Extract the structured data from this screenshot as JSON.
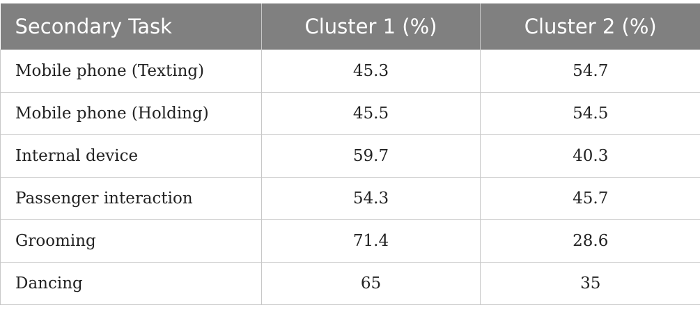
{
  "table": {
    "header": [
      "Secondary Task",
      "Cluster 1 (%)",
      "Cluster 2 (%)"
    ],
    "rows": [
      [
        "Mobile phone (Texting)",
        "45.3",
        "54.7"
      ],
      [
        "Mobile phone (Holding)",
        "45.5",
        "54.5"
      ],
      [
        "Internal device",
        "59.7",
        "40.3"
      ],
      [
        "Passenger interaction",
        "54.3",
        "45.7"
      ],
      [
        "Grooming",
        "71.4",
        "28.6"
      ],
      [
        "Dancing",
        "65",
        "35"
      ]
    ]
  }
}
